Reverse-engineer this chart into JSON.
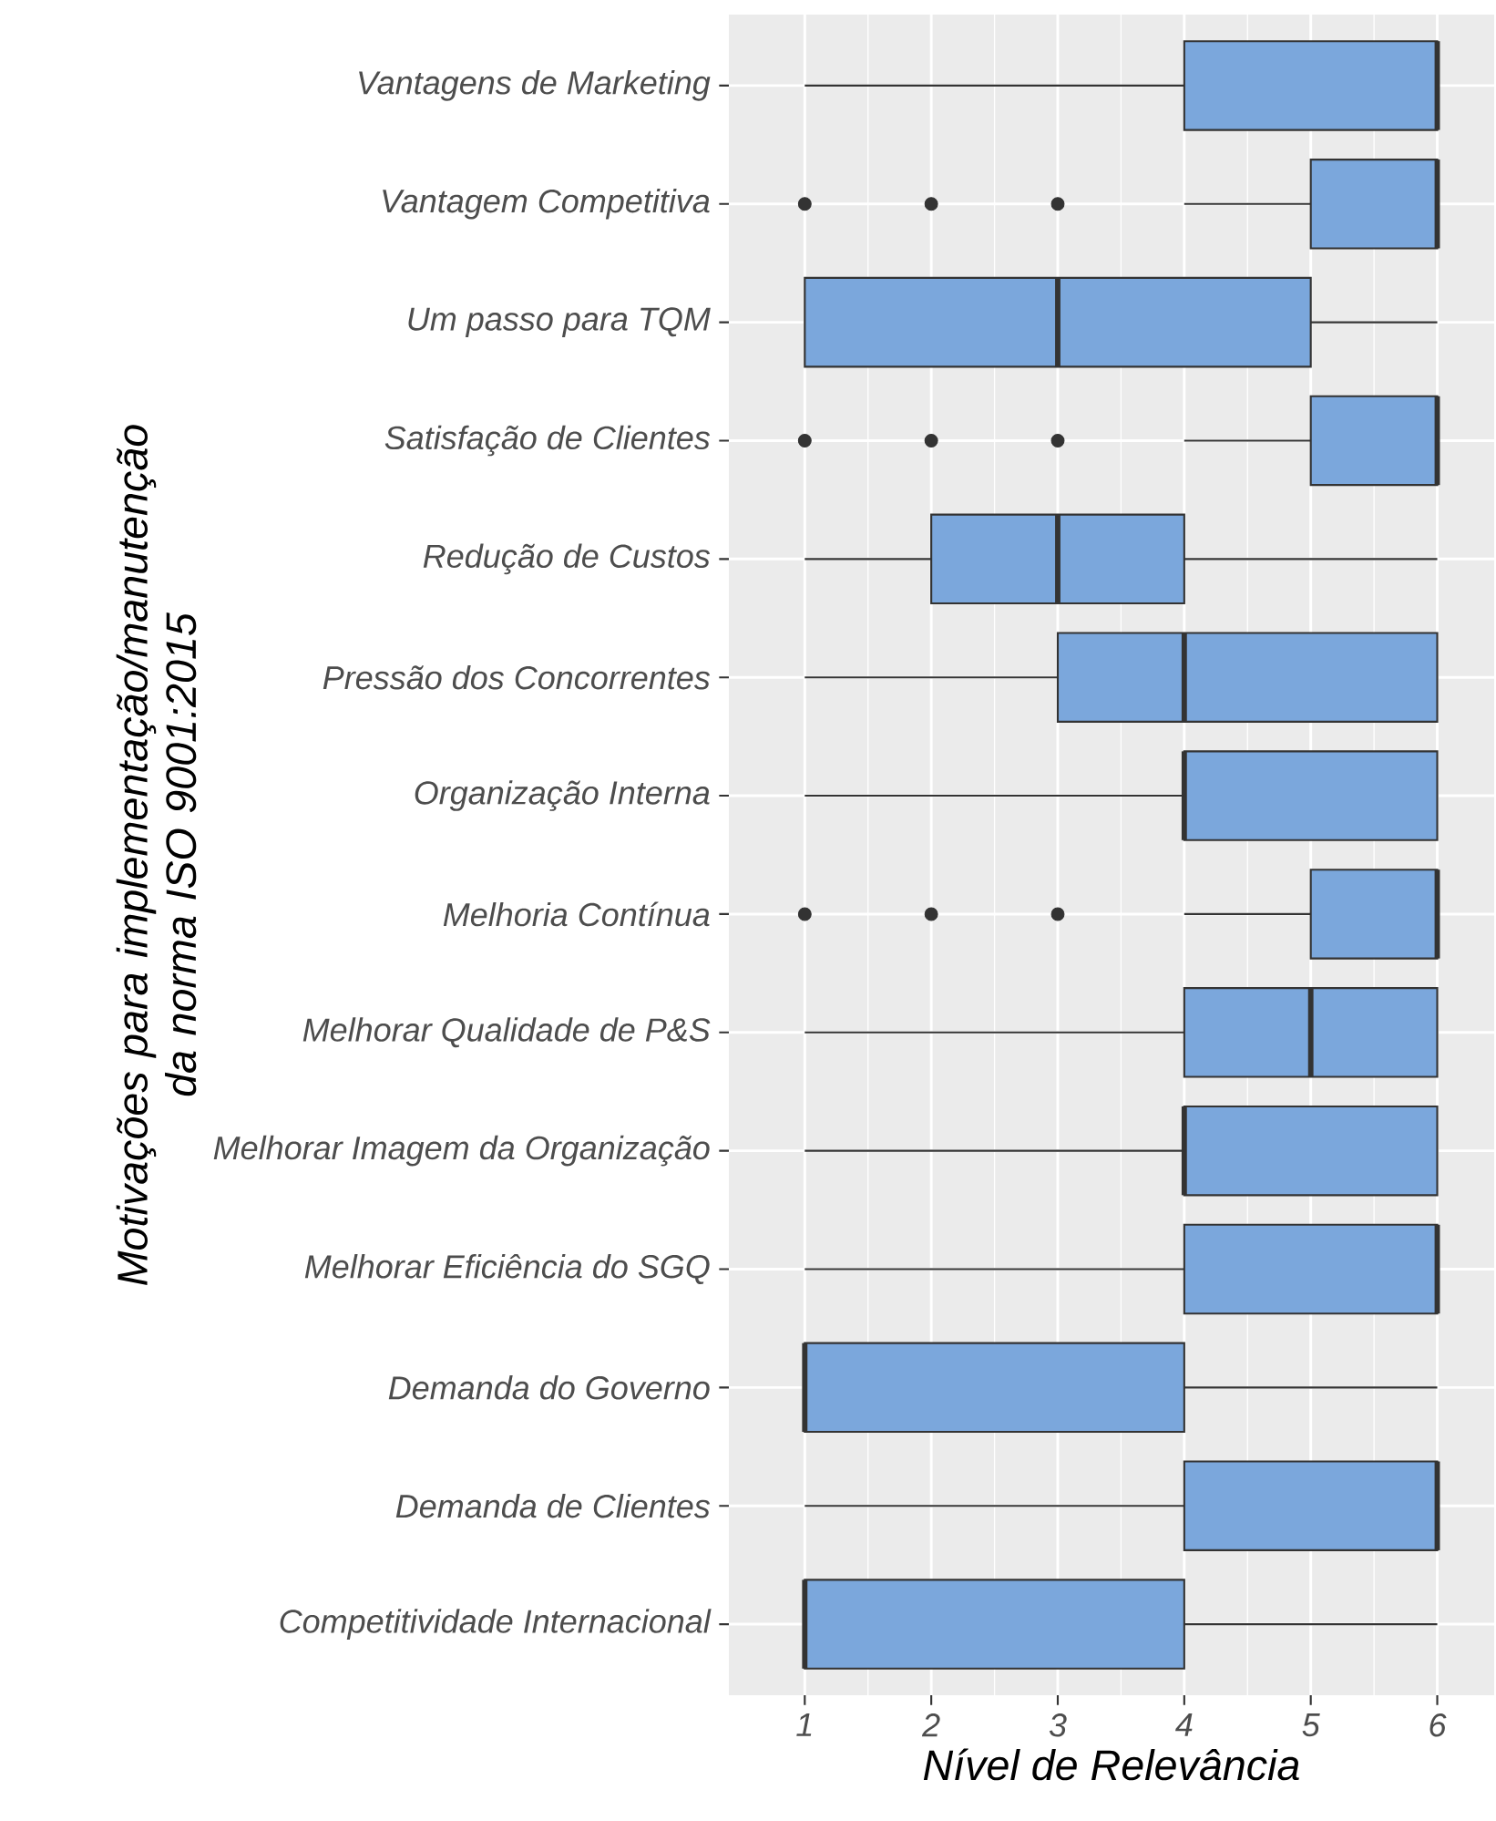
{
  "chart_data": {
    "type": "box",
    "orientation": "horizontal",
    "xlabel": "Nível de Relevância",
    "ylabel": "Motivações para implementação/manutenção da norma ISO 9001:2015",
    "categories": [
      "Vantagens de Marketing",
      "Vantagem Competitiva",
      "Um passo para TQM",
      "Satisfação de Clientes",
      "Redução de Custos",
      "Pressão dos Concorrentes",
      "Organização Interna",
      "Melhoria Contínua",
      "Melhorar Qualidade de P&S",
      "Melhorar Imagem da Organização",
      "Melhorar Eficiência do SGQ",
      "Demanda do Governo",
      "Demanda de Clientes",
      "Competitividade Internacional"
    ],
    "boxes": [
      {
        "low": 1,
        "q1": 4,
        "median": 6,
        "q3": 6,
        "high": 6
      },
      {
        "low": 4,
        "q1": 5,
        "median": 6,
        "q3": 6,
        "high": 6,
        "outliers": [
          1,
          2,
          3
        ]
      },
      {
        "low": 1,
        "q1": 1,
        "median": 3,
        "q3": 5,
        "high": 6
      },
      {
        "low": 4,
        "q1": 5,
        "median": 6,
        "q3": 6,
        "high": 6,
        "outliers": [
          1,
          2,
          3
        ]
      },
      {
        "low": 1,
        "q1": 2,
        "median": 3,
        "q3": 4,
        "high": 6
      },
      {
        "low": 1,
        "q1": 3,
        "median": 4,
        "q3": 6,
        "high": 6
      },
      {
        "low": 1,
        "q1": 4,
        "median": 4,
        "q3": 6,
        "high": 6
      },
      {
        "low": 4,
        "q1": 5,
        "median": 6,
        "q3": 6,
        "high": 6,
        "outliers": [
          1,
          2,
          3
        ]
      },
      {
        "low": 1,
        "q1": 4,
        "median": 5,
        "q3": 6,
        "high": 6
      },
      {
        "low": 1,
        "q1": 4,
        "median": 4,
        "q3": 6,
        "high": 6
      },
      {
        "low": 1,
        "q1": 4,
        "median": 6,
        "q3": 6,
        "high": 6
      },
      {
        "low": 1,
        "q1": 1,
        "median": 1,
        "q3": 4,
        "high": 6
      },
      {
        "low": 1,
        "q1": 4,
        "median": 6,
        "q3": 6,
        "high": 6
      },
      {
        "low": 1,
        "q1": 1,
        "median": 1,
        "q3": 4,
        "high": 6
      }
    ],
    "color": "#7ba7dc",
    "xlim": [
      0.4,
      6.45
    ],
    "xticks": [
      1,
      2,
      3,
      4,
      5,
      6
    ],
    "grid": true
  }
}
